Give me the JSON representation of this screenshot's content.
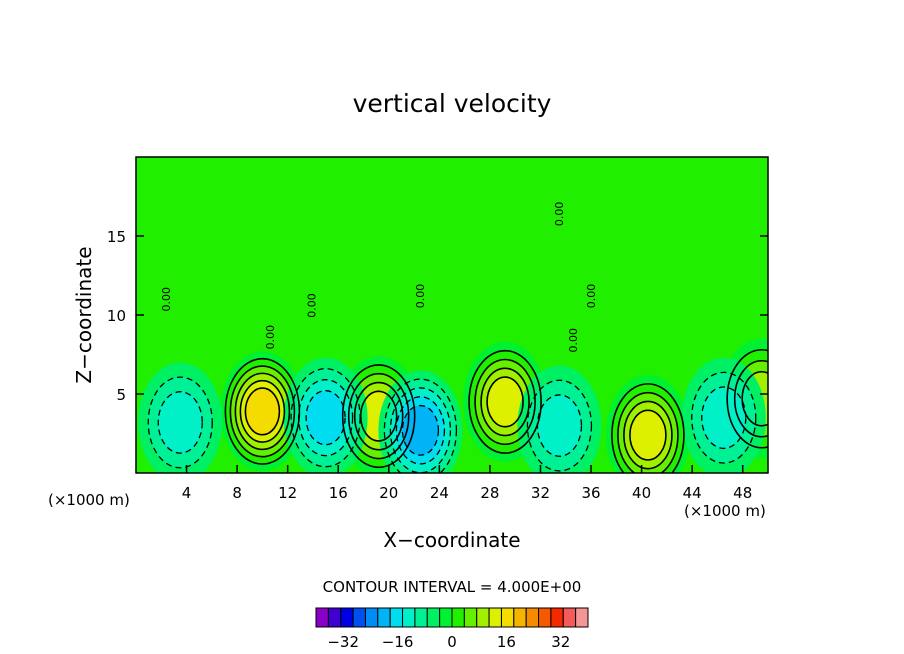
{
  "chart_data": {
    "type": "heatmap",
    "title": "vertical velocity",
    "xlabel": "X−coordinate",
    "ylabel": "Z−coordinate",
    "x_unit_left": "(×1000 m)",
    "x_unit_right": "(×1000 m)",
    "xlim": [
      0,
      50
    ],
    "ylim": [
      0,
      20
    ],
    "x_ticks": [
      4,
      8,
      12,
      16,
      20,
      24,
      28,
      32,
      36,
      40,
      44,
      48
    ],
    "y_ticks": [
      5,
      10,
      15
    ],
    "contour_interval_text": "CONTOUR INTERVAL = 4.000E+00",
    "contour_interval": 4,
    "contour_zero_label": "0.00",
    "colorbar": {
      "min": -40,
      "max": 40,
      "step": 4,
      "tick_values": [
        -32,
        -16,
        0,
        16,
        32
      ],
      "tick_labels": [
        "−32",
        "−16",
        "0",
        "16",
        "32"
      ],
      "colors": [
        "#8a00c8",
        "#4000d0",
        "#0000e6",
        "#0050f0",
        "#008cf5",
        "#00b4f5",
        "#00dcf0",
        "#00f0c8",
        "#00f096",
        "#00f064",
        "#00f032",
        "#20f000",
        "#64f000",
        "#a0f000",
        "#dcf000",
        "#f5dc00",
        "#f5b400",
        "#f58c00",
        "#f55a00",
        "#f52800",
        "#f55a5a",
        "#f59696"
      ]
    },
    "background_level_color": "#20f000",
    "grid": false,
    "extrema": [
      {
        "x": 10.0,
        "z": 3.9,
        "value": 22
      },
      {
        "x": 19.2,
        "z": 3.6,
        "value": 18
      },
      {
        "x": 29.2,
        "z": 4.5,
        "value": 18
      },
      {
        "x": 40.5,
        "z": 2.4,
        "value": 18
      },
      {
        "x": 49.5,
        "z": 4.7,
        "value": 12
      },
      {
        "x": 22.5,
        "z": 2.7,
        "value": -16
      },
      {
        "x": 15.0,
        "z": 3.5,
        "value": -12
      },
      {
        "x": 33.5,
        "z": 3.0,
        "value": -8
      },
      {
        "x": 46.5,
        "z": 3.5,
        "value": -8
      },
      {
        "x": 3.5,
        "z": 3.2,
        "value": -8
      }
    ]
  }
}
